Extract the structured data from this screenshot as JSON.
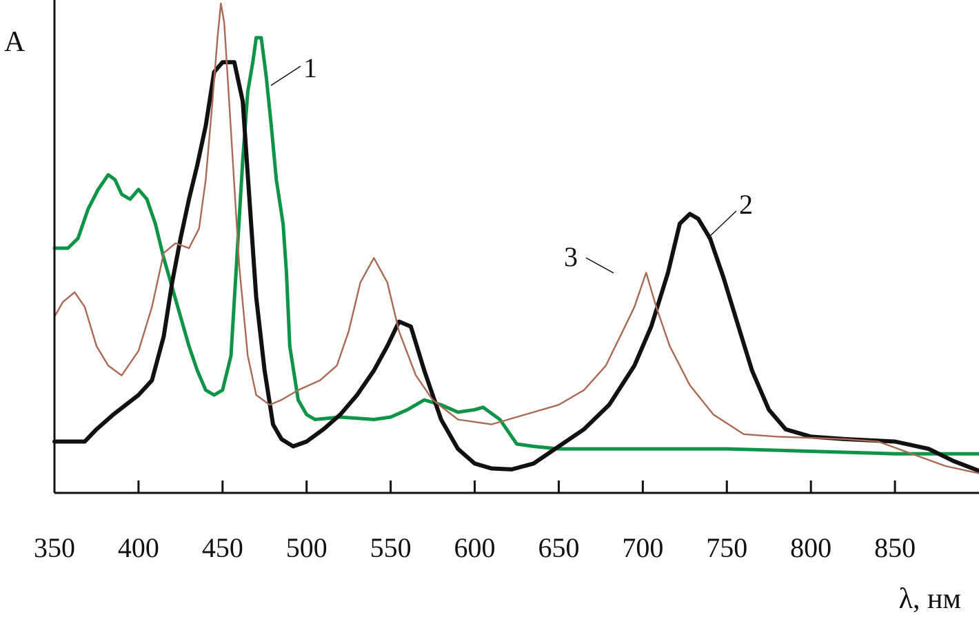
{
  "chart_data": {
    "type": "line",
    "title": "",
    "ylabel": "A",
    "xlabel": "λ, нм",
    "xlim": [
      350,
      900
    ],
    "ylim": [
      0,
      1
    ],
    "grid": false,
    "legend": "none",
    "x_ticks": [
      350,
      400,
      450,
      500,
      550,
      600,
      650,
      700,
      750,
      800,
      850
    ],
    "x_tick_labels": [
      "350",
      "400",
      "450",
      "500",
      "550",
      "600",
      "650",
      "700",
      "750",
      "800",
      "850"
    ],
    "series": [
      {
        "name": "1",
        "color": "#0e9447",
        "label_text": "1",
        "points": [
          [
            350,
            0.5
          ],
          [
            358,
            0.5
          ],
          [
            364,
            0.52
          ],
          [
            370,
            0.58
          ],
          [
            376,
            0.62
          ],
          [
            382,
            0.65
          ],
          [
            386,
            0.64
          ],
          [
            390,
            0.61
          ],
          [
            395,
            0.6
          ],
          [
            400,
            0.62
          ],
          [
            405,
            0.6
          ],
          [
            410,
            0.55
          ],
          [
            415,
            0.48
          ],
          [
            420,
            0.42
          ],
          [
            425,
            0.36
          ],
          [
            430,
            0.3
          ],
          [
            435,
            0.25
          ],
          [
            440,
            0.21
          ],
          [
            445,
            0.2
          ],
          [
            450,
            0.21
          ],
          [
            455,
            0.28
          ],
          [
            458,
            0.45
          ],
          [
            462,
            0.68
          ],
          [
            465,
            0.82
          ],
          [
            468,
            0.88
          ],
          [
            470,
            0.93
          ],
          [
            473,
            0.93
          ],
          [
            476,
            0.85
          ],
          [
            479,
            0.75
          ],
          [
            482,
            0.64
          ],
          [
            486,
            0.55
          ],
          [
            488,
            0.45
          ],
          [
            490,
            0.3
          ],
          [
            495,
            0.19
          ],
          [
            500,
            0.16
          ],
          [
            505,
            0.15
          ],
          [
            520,
            0.155
          ],
          [
            540,
            0.15
          ],
          [
            550,
            0.155
          ],
          [
            560,
            0.17
          ],
          [
            570,
            0.19
          ],
          [
            580,
            0.18
          ],
          [
            590,
            0.165
          ],
          [
            600,
            0.17
          ],
          [
            605,
            0.175
          ],
          [
            615,
            0.15
          ],
          [
            625,
            0.1
          ],
          [
            635,
            0.095
          ],
          [
            650,
            0.09
          ],
          [
            700,
            0.09
          ],
          [
            750,
            0.09
          ],
          [
            800,
            0.085
          ],
          [
            850,
            0.08
          ],
          [
            900,
            0.08
          ]
        ]
      },
      {
        "name": "2",
        "color": "#111111",
        "label_text": "2",
        "points": [
          [
            350,
            0.105
          ],
          [
            368,
            0.105
          ],
          [
            375,
            0.13
          ],
          [
            385,
            0.16
          ],
          [
            400,
            0.2
          ],
          [
            408,
            0.23
          ],
          [
            415,
            0.32
          ],
          [
            420,
            0.43
          ],
          [
            425,
            0.52
          ],
          [
            430,
            0.6
          ],
          [
            435,
            0.67
          ],
          [
            440,
            0.75
          ],
          [
            445,
            0.86
          ],
          [
            450,
            0.88
          ],
          [
            457,
            0.88
          ],
          [
            462,
            0.8
          ],
          [
            466,
            0.6
          ],
          [
            470,
            0.4
          ],
          [
            475,
            0.25
          ],
          [
            480,
            0.14
          ],
          [
            485,
            0.11
          ],
          [
            492,
            0.095
          ],
          [
            500,
            0.105
          ],
          [
            510,
            0.13
          ],
          [
            520,
            0.16
          ],
          [
            530,
            0.2
          ],
          [
            540,
            0.25
          ],
          [
            548,
            0.3
          ],
          [
            555,
            0.35
          ],
          [
            562,
            0.34
          ],
          [
            570,
            0.25
          ],
          [
            580,
            0.15
          ],
          [
            590,
            0.09
          ],
          [
            600,
            0.06
          ],
          [
            610,
            0.05
          ],
          [
            622,
            0.048
          ],
          [
            635,
            0.06
          ],
          [
            650,
            0.095
          ],
          [
            665,
            0.13
          ],
          [
            680,
            0.18
          ],
          [
            695,
            0.26
          ],
          [
            705,
            0.34
          ],
          [
            715,
            0.45
          ],
          [
            722,
            0.55
          ],
          [
            728,
            0.57
          ],
          [
            733,
            0.56
          ],
          [
            740,
            0.52
          ],
          [
            748,
            0.44
          ],
          [
            756,
            0.35
          ],
          [
            765,
            0.25
          ],
          [
            775,
            0.17
          ],
          [
            785,
            0.13
          ],
          [
            800,
            0.115
          ],
          [
            820,
            0.11
          ],
          [
            850,
            0.105
          ],
          [
            870,
            0.09
          ],
          [
            885,
            0.065
          ],
          [
            900,
            0.045
          ]
        ]
      },
      {
        "name": "3",
        "color": "#a86a55",
        "label_text": "3",
        "points": [
          [
            350,
            0.36
          ],
          [
            355,
            0.39
          ],
          [
            362,
            0.41
          ],
          [
            368,
            0.38
          ],
          [
            375,
            0.3
          ],
          [
            382,
            0.26
          ],
          [
            390,
            0.24
          ],
          [
            400,
            0.29
          ],
          [
            408,
            0.38
          ],
          [
            415,
            0.49
          ],
          [
            422,
            0.51
          ],
          [
            430,
            0.5
          ],
          [
            436,
            0.54
          ],
          [
            440,
            0.64
          ],
          [
            444,
            0.8
          ],
          [
            447,
            0.93
          ],
          [
            449,
            1.0
          ],
          [
            451,
            0.96
          ],
          [
            455,
            0.74
          ],
          [
            460,
            0.46
          ],
          [
            465,
            0.28
          ],
          [
            470,
            0.2
          ],
          [
            478,
            0.18
          ],
          [
            485,
            0.19
          ],
          [
            495,
            0.21
          ],
          [
            508,
            0.23
          ],
          [
            518,
            0.26
          ],
          [
            525,
            0.33
          ],
          [
            532,
            0.43
          ],
          [
            540,
            0.48
          ],
          [
            548,
            0.43
          ],
          [
            555,
            0.33
          ],
          [
            565,
            0.24
          ],
          [
            575,
            0.19
          ],
          [
            590,
            0.15
          ],
          [
            610,
            0.14
          ],
          [
            630,
            0.16
          ],
          [
            650,
            0.18
          ],
          [
            665,
            0.21
          ],
          [
            678,
            0.26
          ],
          [
            688,
            0.33
          ],
          [
            695,
            0.38
          ],
          [
            702,
            0.45
          ],
          [
            708,
            0.38
          ],
          [
            716,
            0.3
          ],
          [
            728,
            0.22
          ],
          [
            742,
            0.16
          ],
          [
            760,
            0.12
          ],
          [
            780,
            0.115
          ],
          [
            820,
            0.11
          ],
          [
            840,
            0.105
          ],
          [
            860,
            0.08
          ],
          [
            880,
            0.055
          ],
          [
            900,
            0.04
          ]
        ]
      }
    ]
  }
}
